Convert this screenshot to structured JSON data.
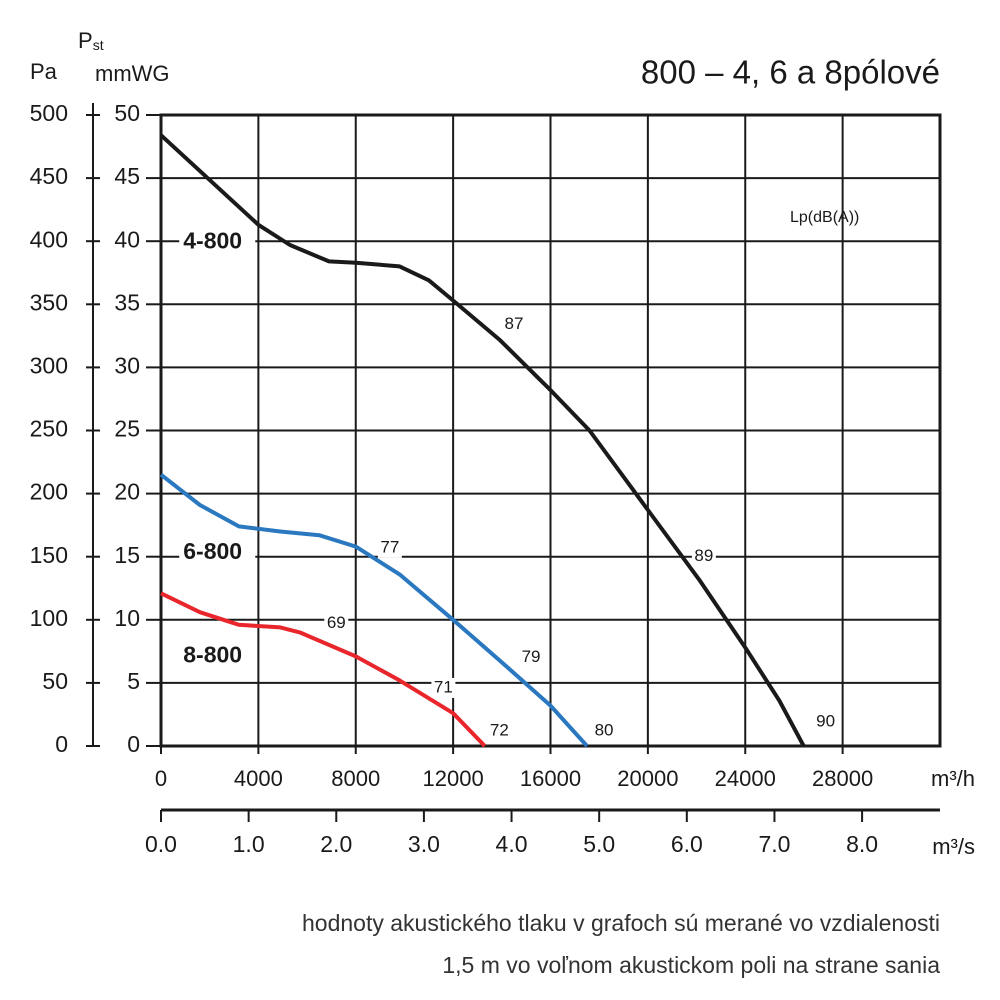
{
  "chart_data": {
    "type": "line",
    "title": "800 – 4, 6 a 8pólové",
    "y_label": "Pa",
    "y2_label_symbol": "P",
    "y2_label_subscript": "st",
    "y2_label": "mmWG",
    "x_label": "m³/h",
    "x2_label": "m³/s",
    "annotation": "Lp(dB(A))",
    "footnote": [
      "hodnoty akustického tlaku v grafoch sú merané vo vzdialenosti",
      "1,5 m vo voľnom akustickom poli na strane sania"
    ],
    "xlim": [
      0,
      32000
    ],
    "xticks": [
      0,
      4000,
      8000,
      12000,
      16000,
      20000,
      24000,
      28000
    ],
    "x2lim": [
      0,
      8.889
    ],
    "x2ticks": [
      {
        "value": 0,
        "label": "0.0"
      },
      {
        "value": 1,
        "label": "1.0"
      },
      {
        "value": 2,
        "label": "2.0"
      },
      {
        "value": 3,
        "label": "3.0"
      },
      {
        "value": 4,
        "label": "4.0"
      },
      {
        "value": 5,
        "label": "5.0"
      },
      {
        "value": 6,
        "label": "6.0"
      },
      {
        "value": 7,
        "label": "7.0"
      },
      {
        "value": 8,
        "label": "8.0"
      }
    ],
    "ylim": [
      0,
      500
    ],
    "yticks": [
      0,
      50,
      100,
      150,
      200,
      250,
      300,
      350,
      400,
      450,
      500
    ],
    "y2lim": [
      0,
      50
    ],
    "y2ticks": [
      0,
      5,
      10,
      15,
      20,
      25,
      30,
      35,
      40,
      45,
      50
    ],
    "grid": true,
    "series": [
      {
        "name": "4-800",
        "color": "#1a1a1a",
        "name_at": [
          1900,
          399
        ],
        "x": [
          0,
          4000,
          5300,
          6900,
          8000,
          9800,
          11000,
          12000,
          13900,
          16000,
          17600,
          20000,
          22100,
          24000,
          25400,
          26400
        ],
        "values": [
          484,
          413,
          397,
          384,
          383,
          380,
          369,
          353,
          322,
          282,
          250,
          187,
          132,
          78,
          36,
          0
        ],
        "db_labels": [
          {
            "value": 87,
            "x": 14500,
            "y": 334
          },
          {
            "value": 89,
            "x": 22300,
            "y": 150
          },
          {
            "value": 90,
            "x": 27300,
            "y": 19
          }
        ]
      },
      {
        "name": "6-800",
        "color": "#2a78c0",
        "name_at": [
          1900,
          153
        ],
        "x": [
          0,
          1600,
          3200,
          4900,
          6500,
          8000,
          9800,
          12000,
          13900,
          16000,
          17500
        ],
        "values": [
          215,
          191,
          174,
          170,
          167,
          158,
          136,
          100,
          68,
          32,
          0
        ],
        "db_labels": [
          {
            "value": 77,
            "x": 9400,
            "y": 157
          },
          {
            "value": 79,
            "x": 15200,
            "y": 70
          },
          {
            "value": 80,
            "x": 18200,
            "y": 12
          }
        ]
      },
      {
        "name": "8-800",
        "color": "#e8262b",
        "name_at": [
          1900,
          71
        ],
        "x": [
          0,
          1600,
          3200,
          4900,
          5700,
          8000,
          9800,
          12000,
          13300
        ],
        "values": [
          121,
          106,
          96,
          94,
          90,
          71,
          52,
          26,
          0
        ],
        "db_labels": [
          {
            "value": 69,
            "x": 7200,
            "y": 97
          },
          {
            "value": 71,
            "x": 11600,
            "y": 46
          },
          {
            "value": 72,
            "x": 13900,
            "y": 12
          }
        ]
      }
    ]
  }
}
